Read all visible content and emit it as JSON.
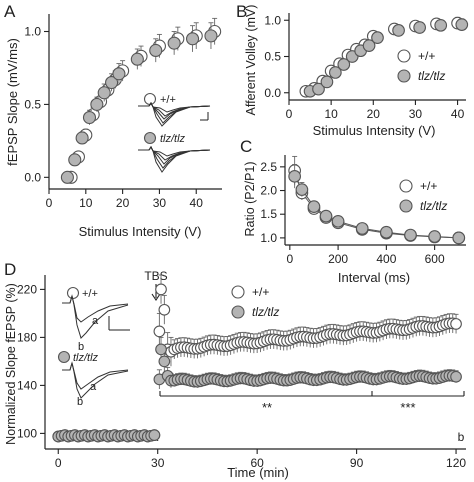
{
  "chart_data": [
    {
      "panel_label": "A",
      "type": "scatter",
      "xlabel": "Stimulus Intensity (V)",
      "ylabel": "fEPSP Slope (mV/ms)",
      "xlim": [
        0,
        47
      ],
      "ylim": [
        -0.08,
        1.12
      ],
      "xticks": [
        0,
        10,
        20,
        30,
        40
      ],
      "yticks": [
        0.0,
        0.5,
        1.0
      ],
      "ytick_labels": [
        "0.0",
        "0.5",
        "1.0"
      ],
      "legend_labels": [
        "+/+",
        "tlz/tlz"
      ],
      "series": [
        {
          "name": "+/+",
          "fill": "#ffffff",
          "x": [
            6,
            8,
            10,
            12,
            14,
            16,
            18,
            20,
            25,
            30,
            35,
            40,
            45
          ],
          "y": [
            0.0,
            0.14,
            0.29,
            0.43,
            0.52,
            0.6,
            0.67,
            0.73,
            0.83,
            0.9,
            0.95,
            0.97,
            1.0
          ],
          "err": [
            0.02,
            0.03,
            0.04,
            0.05,
            0.05,
            0.06,
            0.06,
            0.07,
            0.07,
            0.08,
            0.08,
            0.09,
            0.09
          ]
        },
        {
          "name": "tlz/tlz",
          "fill": "#b4b4b4",
          "x": [
            5,
            7,
            9,
            11,
            13,
            15,
            17,
            19,
            24,
            29,
            34,
            39,
            44
          ],
          "y": [
            0.0,
            0.12,
            0.27,
            0.41,
            0.5,
            0.58,
            0.65,
            0.71,
            0.81,
            0.87,
            0.92,
            0.95,
            0.97
          ],
          "err": [
            0.02,
            0.03,
            0.04,
            0.05,
            0.05,
            0.06,
            0.06,
            0.07,
            0.07,
            0.08,
            0.08,
            0.09,
            0.09
          ]
        }
      ]
    },
    {
      "panel_label": "B",
      "type": "scatter",
      "xlabel": "Stimulus Intensity (V)",
      "ylabel": "Afferent Volley (mV)",
      "xlim": [
        0,
        42
      ],
      "ylim": [
        -0.1,
        1.1
      ],
      "xticks": [
        0,
        10,
        20,
        30,
        40
      ],
      "yticks": [
        0.0,
        0.5,
        1.0
      ],
      "ytick_labels": [
        "0.0",
        "0.5",
        "1.0"
      ],
      "legend_labels": [
        "+/+",
        "tlz/tlz"
      ],
      "series": [
        {
          "name": "+/+",
          "fill": "#ffffff",
          "x": [
            4,
            6,
            8,
            10,
            12,
            14,
            16,
            18,
            20,
            25,
            30,
            35,
            40
          ],
          "y": [
            0.02,
            0.06,
            0.16,
            0.3,
            0.4,
            0.52,
            0.6,
            0.66,
            0.78,
            0.88,
            0.92,
            0.95,
            0.96
          ],
          "err": [
            0.02,
            0.02,
            0.03,
            0.03,
            0.04,
            0.04,
            0.05,
            0.05,
            0.05,
            0.06,
            0.07,
            0.07,
            0.08
          ]
        },
        {
          "name": "tlz/tlz",
          "fill": "#b4b4b4",
          "x": [
            5,
            7,
            9,
            11,
            13,
            15,
            17,
            19,
            21,
            26,
            31,
            36,
            41
          ],
          "y": [
            0.02,
            0.05,
            0.15,
            0.28,
            0.39,
            0.5,
            0.58,
            0.65,
            0.76,
            0.86,
            0.9,
            0.93,
            0.94
          ],
          "err": [
            0.02,
            0.02,
            0.03,
            0.03,
            0.04,
            0.04,
            0.05,
            0.05,
            0.05,
            0.06,
            0.07,
            0.07,
            0.08
          ]
        }
      ]
    },
    {
      "panel_label": "C",
      "type": "line",
      "xlabel": "Interval (ms)",
      "ylabel": "Ratio (P2/P1)",
      "xlim": [
        -20,
        730
      ],
      "ylim": [
        0.85,
        2.75
      ],
      "xticks": [
        0,
        200,
        400,
        600
      ],
      "yticks": [
        1.0,
        1.5,
        2.0,
        2.5
      ],
      "ytick_labels": [
        "1.0",
        "1.5",
        "2.0",
        "2.5"
      ],
      "legend_labels": [
        "+/+",
        "tlz/tlz"
      ],
      "series": [
        {
          "name": "+/+",
          "fill": "#ffffff",
          "x": [
            20,
            50,
            100,
            150,
            200,
            300,
            400,
            500,
            600,
            700
          ],
          "y": [
            2.42,
            1.95,
            1.62,
            1.43,
            1.32,
            1.18,
            1.1,
            1.05,
            1.02,
            1.0
          ],
          "err": [
            0.3,
            0.15,
            0.1,
            0.08,
            0.07,
            0.05,
            0.05,
            0.04,
            0.04,
            0.04
          ]
        },
        {
          "name": "tlz/tlz",
          "fill": "#b4b4b4",
          "x": [
            20,
            50,
            100,
            150,
            200,
            300,
            400,
            500,
            600,
            700
          ],
          "y": [
            2.3,
            2.02,
            1.66,
            1.46,
            1.35,
            1.2,
            1.12,
            1.06,
            1.03,
            1.0
          ],
          "err": [
            0.25,
            0.15,
            0.1,
            0.08,
            0.07,
            0.05,
            0.05,
            0.04,
            0.04,
            0.04
          ]
        }
      ]
    },
    {
      "panel_label": "D",
      "type": "scatter",
      "xlabel": "Time (min)",
      "ylabel": "Normalized Slope fEPSP (%)",
      "xlim": [
        -4,
        123
      ],
      "ylim": [
        87,
        232
      ],
      "xticks": [
        0,
        30,
        60,
        90,
        120
      ],
      "yticks": [
        100,
        140,
        180,
        220
      ],
      "ytick_labels": [
        "100",
        "140",
        "180",
        "220"
      ],
      "legend_labels": [
        "+/+",
        "tlz/tlz"
      ],
      "series": [
        {
          "name": "+/+",
          "fill": "#ffffff",
          "baseline": {
            "t_start": 0,
            "t_end": 29,
            "step": 1,
            "value": 98,
            "err": 3
          },
          "post": [
            {
              "t": 30.5,
              "y": 185,
              "err": 15
            },
            {
              "t": 31,
              "y": 220,
              "err": 12
            },
            {
              "t": 32,
              "y": 203,
              "err": 12
            },
            {
              "t": 33,
              "y": 170,
              "err": 14
            },
            {
              "t": 34,
              "y": 168,
              "err": 12
            },
            {
              "t_start": 35,
              "t_end": 120,
              "step": 1,
              "y_start": 170,
              "y_end": 191,
              "err": 8
            }
          ]
        },
        {
          "name": "tlz/tlz",
          "fill": "#b4b4b4",
          "baseline": {
            "t_start": 0,
            "t_end": 29,
            "step": 1,
            "value": 98,
            "err": 3
          },
          "post": [
            {
              "t": 30.5,
              "y": 145,
              "err": 8
            },
            {
              "t": 31,
              "y": 170,
              "err": 10
            },
            {
              "t": 32,
              "y": 160,
              "err": 9
            },
            {
              "t": 33,
              "y": 148,
              "err": 7
            },
            {
              "t": 34,
              "y": 144,
              "err": 6
            },
            {
              "t_start": 35,
              "t_end": 120,
              "step": 1,
              "y_start": 144,
              "y_end": 147,
              "err": 5
            }
          ]
        }
      ],
      "annotations": [
        {
          "text": "TBS",
          "x": 30
        },
        {
          "text": "a",
          "x": 30
        },
        {
          "text": "b",
          "x": 120
        },
        {
          "text": "**",
          "x": 60
        },
        {
          "text": "***",
          "x": 106
        }
      ],
      "inset_labels": {
        "wt_a": "a",
        "wt_b": "b",
        "mut_a": "a",
        "mut_b": "b"
      }
    }
  ]
}
